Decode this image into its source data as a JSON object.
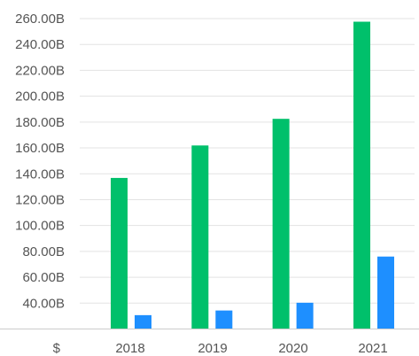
{
  "chart_data": {
    "type": "bar",
    "categories": [
      "2018",
      "2019",
      "2020",
      "2021"
    ],
    "series": [
      {
        "values": [
          136.8,
          161.9,
          182.5,
          257.6
        ],
        "color": "#00c06b"
      },
      {
        "values": [
          30.7,
          34.3,
          40.3,
          76.0
        ],
        "color": "#1e8fff"
      }
    ],
    "ylim": [
      20,
      260
    ],
    "yticks": [
      40,
      60,
      80,
      100,
      120,
      140,
      160,
      180,
      200,
      220,
      240,
      260
    ],
    "ytick_labels": [
      "40.00B",
      "60.00B",
      "80.00B",
      "100.00B",
      "120.00B",
      "140.00B",
      "160.00B",
      "180.00B",
      "200.00B",
      "220.00B",
      "240.00B",
      "260.00B"
    ],
    "currency_label": "$",
    "grid": true,
    "legend": "none"
  }
}
